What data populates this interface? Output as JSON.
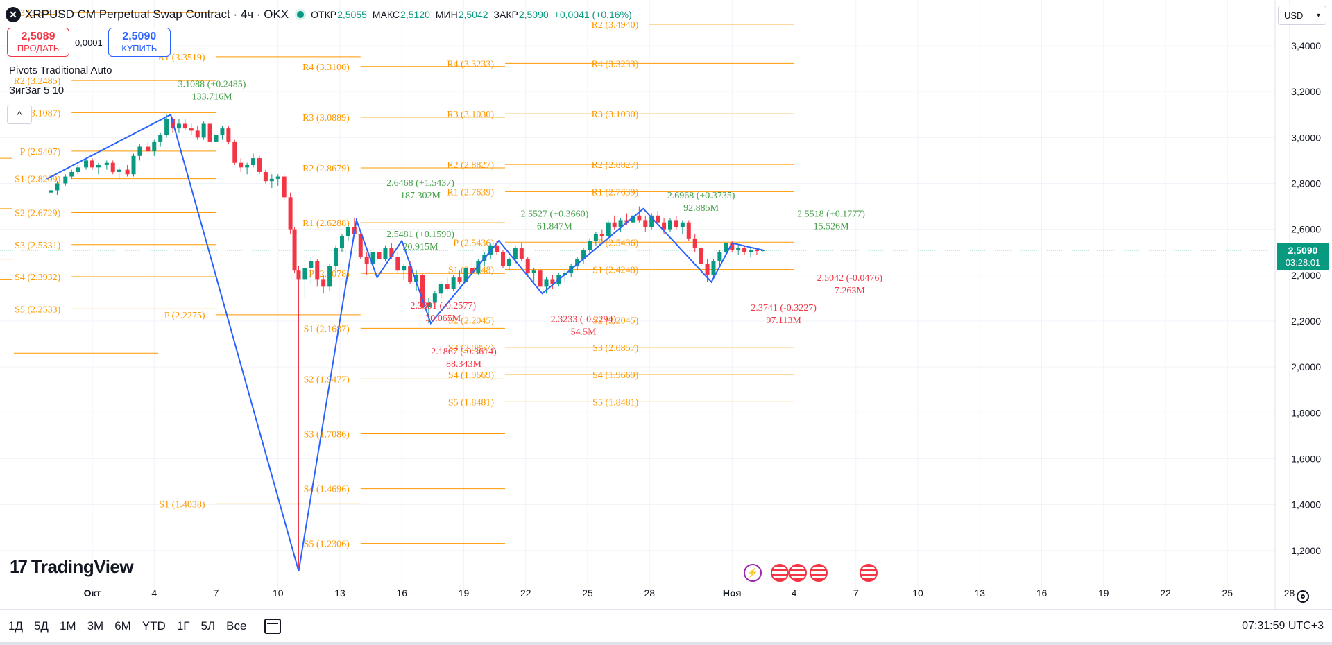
{
  "legend": {
    "symbol": "XRPUSD CM Perpetual Swap Contract · 4ч · OKX",
    "open_label": "ОТКР",
    "open_value": "2,5055",
    "high_label": "МАКС",
    "high_value": "2,5120",
    "low_label": "МИН",
    "low_value": "2,5042",
    "close_label": "ЗАКР",
    "close_value": "2,5090",
    "change": "+0,0041 (+0,16%)"
  },
  "trade": {
    "sell_price": "2,5089",
    "sell_label": "ПРОДАТЬ",
    "spread": "0,0001",
    "buy_price": "2,5090",
    "buy_label": "КУПИТЬ"
  },
  "indicators": {
    "pivots": "Pivots Traditional Auto",
    "zigzag": "ЗигЗаг 5 10"
  },
  "currency": {
    "label": "USD",
    "icon": "chevron-down-icon"
  },
  "last_price": {
    "price": "2,5090",
    "countdown": "03:28:01"
  },
  "brand": {
    "name": "TradingView"
  },
  "toolbar": {
    "timeframes": [
      "1Д",
      "5Д",
      "1М",
      "3М",
      "6М",
      "YTD",
      "1Г",
      "5Л",
      "Все"
    ],
    "clock": "07:31:59 UTC+3"
  },
  "colors": {
    "up": "#089981",
    "down": "#f23645",
    "pivot": "#ff9800",
    "zigzag": "#2962ff",
    "zz_up_label": "#43a047",
    "zz_down_label": "#f23645"
  },
  "chart_data": {
    "type": "candlestick",
    "price_axis": [
      "3,4000",
      "3,2000",
      "3,0000",
      "2,8000",
      "2,6000",
      "2,4000",
      "2,2000",
      "2,0000",
      "1,8000",
      "1,6000",
      "1,4000",
      "1,2000"
    ],
    "price_axis_values": [
      3.4,
      3.2,
      3.0,
      2.8,
      2.6,
      2.4,
      2.2,
      2.0,
      1.8,
      1.6,
      1.4,
      1.2
    ],
    "ylim": [
      1.12,
      3.5
    ],
    "time_axis": [
      "Окт",
      "4",
      "7",
      "10",
      "13",
      "16",
      "19",
      "22",
      "25",
      "28",
      "Ноя",
      "4",
      "7",
      "10",
      "13",
      "16",
      "19",
      "22",
      "25",
      "28"
    ],
    "time_axis_days": [
      1,
      4,
      7,
      10,
      13,
      16,
      19,
      22,
      25,
      28,
      32,
      35,
      38,
      41,
      44,
      47,
      50,
      53,
      56,
      59
    ],
    "xlim": [
      -1.2,
      63
    ],
    "last_price": 2.509,
    "candles": [
      [
        -1.0,
        2.76,
        2.78,
        2.74,
        2.77
      ],
      [
        -0.7,
        2.77,
        2.81,
        2.75,
        2.8
      ],
      [
        -0.3,
        2.8,
        2.84,
        2.79,
        2.83
      ],
      [
        0.0,
        2.83,
        2.86,
        2.82,
        2.85
      ],
      [
        0.3,
        2.85,
        2.88,
        2.84,
        2.87
      ],
      [
        0.7,
        2.87,
        2.91,
        2.86,
        2.9
      ],
      [
        1.0,
        2.9,
        2.91,
        2.86,
        2.87
      ],
      [
        1.3,
        2.87,
        2.89,
        2.84,
        2.88
      ],
      [
        1.7,
        2.88,
        2.9,
        2.86,
        2.89
      ],
      [
        2.0,
        2.89,
        2.9,
        2.84,
        2.85
      ],
      [
        2.3,
        2.85,
        2.87,
        2.82,
        2.86
      ],
      [
        2.7,
        2.86,
        2.88,
        2.83,
        2.84
      ],
      [
        3.0,
        2.84,
        2.93,
        2.83,
        2.92
      ],
      [
        3.3,
        2.92,
        2.97,
        2.9,
        2.96
      ],
      [
        3.7,
        2.96,
        2.98,
        2.93,
        2.94
      ],
      [
        4.0,
        2.94,
        2.99,
        2.92,
        2.98
      ],
      [
        4.3,
        2.98,
        3.02,
        2.96,
        3.01
      ],
      [
        4.6,
        3.01,
        3.1,
        3.0,
        3.08
      ],
      [
        4.9,
        3.08,
        3.09,
        3.02,
        3.04
      ],
      [
        5.2,
        3.04,
        3.08,
        3.02,
        3.06
      ],
      [
        5.5,
        3.06,
        3.08,
        3.03,
        3.04
      ],
      [
        5.8,
        3.04,
        3.06,
        3.01,
        3.03
      ],
      [
        6.1,
        3.03,
        3.05,
        2.99,
        3.0
      ],
      [
        6.4,
        3.0,
        3.07,
        2.99,
        3.06
      ],
      [
        6.7,
        3.06,
        3.07,
        2.97,
        2.98
      ],
      [
        7.0,
        2.98,
        3.02,
        2.96,
        3.01
      ],
      [
        7.3,
        3.01,
        3.05,
        2.99,
        3.04
      ],
      [
        7.6,
        3.04,
        3.05,
        2.97,
        2.98
      ],
      [
        7.9,
        2.98,
        2.99,
        2.88,
        2.89
      ],
      [
        8.2,
        2.89,
        2.91,
        2.85,
        2.87
      ],
      [
        8.5,
        2.87,
        2.89,
        2.84,
        2.88
      ],
      [
        8.8,
        2.88,
        2.93,
        2.87,
        2.91
      ],
      [
        9.1,
        2.91,
        2.92,
        2.84,
        2.85
      ],
      [
        9.4,
        2.85,
        2.86,
        2.8,
        2.81
      ],
      [
        9.7,
        2.81,
        2.84,
        2.78,
        2.82
      ],
      [
        10.0,
        2.82,
        2.84,
        2.79,
        2.83
      ],
      [
        10.3,
        2.83,
        2.84,
        2.73,
        2.74
      ],
      [
        10.6,
        2.74,
        2.76,
        2.58,
        2.6
      ],
      [
        10.8,
        2.6,
        2.61,
        2.41,
        2.42
      ],
      [
        11.0,
        2.42,
        2.44,
        1.11,
        2.38
      ],
      [
        11.3,
        2.38,
        2.45,
        2.3,
        2.43
      ],
      [
        11.6,
        2.43,
        2.48,
        2.36,
        2.46
      ],
      [
        11.9,
        2.46,
        2.47,
        2.35,
        2.38
      ],
      [
        12.2,
        2.38,
        2.4,
        2.32,
        2.35
      ],
      [
        12.5,
        2.35,
        2.45,
        2.33,
        2.44
      ],
      [
        12.8,
        2.44,
        2.53,
        2.42,
        2.52
      ],
      [
        13.1,
        2.52,
        2.58,
        2.5,
        2.57
      ],
      [
        13.4,
        2.57,
        2.62,
        2.55,
        2.61
      ],
      [
        13.7,
        2.61,
        2.65,
        2.57,
        2.58
      ],
      [
        14.0,
        2.58,
        2.59,
        2.47,
        2.48
      ],
      [
        14.3,
        2.48,
        2.5,
        2.4,
        2.45
      ],
      [
        14.6,
        2.45,
        2.52,
        2.43,
        2.5
      ],
      [
        14.9,
        2.5,
        2.53,
        2.46,
        2.47
      ],
      [
        15.2,
        2.47,
        2.53,
        2.46,
        2.52
      ],
      [
        15.5,
        2.52,
        2.54,
        2.47,
        2.48
      ],
      [
        15.8,
        2.48,
        2.5,
        2.41,
        2.42
      ],
      [
        16.1,
        2.42,
        2.45,
        2.38,
        2.44
      ],
      [
        16.4,
        2.44,
        2.46,
        2.36,
        2.37
      ],
      [
        16.7,
        2.37,
        2.42,
        2.33,
        2.4
      ],
      [
        17.0,
        2.4,
        2.41,
        2.25,
        2.26
      ],
      [
        17.3,
        2.26,
        2.3,
        2.19,
        2.28
      ],
      [
        17.6,
        2.28,
        2.33,
        2.26,
        2.32
      ],
      [
        17.9,
        2.32,
        2.37,
        2.3,
        2.36
      ],
      [
        18.2,
        2.36,
        2.39,
        2.33,
        2.34
      ],
      [
        18.5,
        2.34,
        2.4,
        2.33,
        2.39
      ],
      [
        18.8,
        2.39,
        2.42,
        2.36,
        2.37
      ],
      [
        19.1,
        2.37,
        2.44,
        2.36,
        2.43
      ],
      [
        19.4,
        2.43,
        2.46,
        2.4,
        2.41
      ],
      [
        19.7,
        2.41,
        2.47,
        2.4,
        2.46
      ],
      [
        20.0,
        2.46,
        2.5,
        2.44,
        2.49
      ],
      [
        20.3,
        2.49,
        2.54,
        2.47,
        2.53
      ],
      [
        20.6,
        2.53,
        2.55,
        2.49,
        2.5
      ],
      [
        20.9,
        2.5,
        2.51,
        2.43,
        2.44
      ],
      [
        21.2,
        2.44,
        2.48,
        2.42,
        2.47
      ],
      [
        21.5,
        2.47,
        2.53,
        2.45,
        2.52
      ],
      [
        21.8,
        2.52,
        2.54,
        2.46,
        2.47
      ],
      [
        22.1,
        2.47,
        2.48,
        2.4,
        2.41
      ],
      [
        22.4,
        2.41,
        2.43,
        2.37,
        2.42
      ],
      [
        22.7,
        2.42,
        2.43,
        2.34,
        2.35
      ],
      [
        23.0,
        2.35,
        2.39,
        2.32,
        2.38
      ],
      [
        23.3,
        2.38,
        2.4,
        2.34,
        2.36
      ],
      [
        23.6,
        2.36,
        2.41,
        2.35,
        2.4
      ],
      [
        23.9,
        2.4,
        2.42,
        2.37,
        2.41
      ],
      [
        24.2,
        2.41,
        2.45,
        2.39,
        2.44
      ],
      [
        24.5,
        2.44,
        2.48,
        2.42,
        2.47
      ],
      [
        24.8,
        2.47,
        2.52,
        2.45,
        2.51
      ],
      [
        25.1,
        2.51,
        2.56,
        2.49,
        2.55
      ],
      [
        25.4,
        2.55,
        2.59,
        2.53,
        2.58
      ],
      [
        25.7,
        2.58,
        2.6,
        2.55,
        2.57
      ],
      [
        26.0,
        2.57,
        2.64,
        2.56,
        2.63
      ],
      [
        26.3,
        2.63,
        2.66,
        2.6,
        2.61
      ],
      [
        26.6,
        2.61,
        2.65,
        2.59,
        2.64
      ],
      [
        26.9,
        2.64,
        2.67,
        2.62,
        2.63
      ],
      [
        27.2,
        2.63,
        2.69,
        2.61,
        2.66
      ],
      [
        27.5,
        2.66,
        2.7,
        2.63,
        2.64
      ],
      [
        27.8,
        2.64,
        2.66,
        2.59,
        2.61
      ],
      [
        28.1,
        2.61,
        2.67,
        2.6,
        2.66
      ],
      [
        28.4,
        2.66,
        2.68,
        2.62,
        2.63
      ],
      [
        28.7,
        2.63,
        2.65,
        2.58,
        2.6
      ],
      [
        29.0,
        2.6,
        2.65,
        2.59,
        2.64
      ],
      [
        29.3,
        2.64,
        2.66,
        2.6,
        2.61
      ],
      [
        29.6,
        2.61,
        2.64,
        2.58,
        2.63
      ],
      [
        29.9,
        2.63,
        2.64,
        2.55,
        2.56
      ],
      [
        30.2,
        2.56,
        2.58,
        2.5,
        2.52
      ],
      [
        30.5,
        2.52,
        2.53,
        2.44,
        2.45
      ],
      [
        30.8,
        2.45,
        2.47,
        2.37,
        2.4
      ],
      [
        31.1,
        2.4,
        2.47,
        2.38,
        2.46
      ],
      [
        31.4,
        2.46,
        2.51,
        2.44,
        2.5
      ],
      [
        31.7,
        2.5,
        2.55,
        2.48,
        2.54
      ],
      [
        32.0,
        2.54,
        2.55,
        2.5,
        2.51
      ],
      [
        32.3,
        2.51,
        2.53,
        2.49,
        2.52
      ],
      [
        32.6,
        2.52,
        2.53,
        2.49,
        2.5
      ],
      [
        32.9,
        2.5,
        2.52,
        2.48,
        2.51
      ],
      [
        33.2,
        2.51,
        2.52,
        2.49,
        2.505
      ],
      [
        33.5,
        2.505,
        2.512,
        2.504,
        2.509
      ]
    ],
    "zigzag": [
      [
        -1.2,
        2.82
      ],
      [
        4.8,
        3.1
      ],
      [
        11.0,
        1.11
      ],
      [
        13.8,
        2.64
      ],
      [
        14.8,
        2.39
      ],
      [
        16.0,
        2.55
      ],
      [
        17.4,
        2.19
      ],
      [
        20.7,
        2.55
      ],
      [
        22.8,
        2.32
      ],
      [
        27.7,
        2.69
      ],
      [
        31.0,
        2.37
      ],
      [
        32.0,
        2.54
      ],
      [
        33.5,
        2.509
      ]
    ],
    "zigzag_labels": [
      {
        "x": 6.8,
        "y": 3.22,
        "color": "up",
        "lines": [
          "3.1088 (+0.2485)",
          "133.716M"
        ]
      },
      {
        "x": 16.9,
        "y": 2.79,
        "color": "up",
        "lines": [
          "2.6468 (+1.5437)",
          "187.302M"
        ]
      },
      {
        "x": 16.9,
        "y": 2.565,
        "color": "up",
        "lines": [
          "2.5481 (+0.1590)",
          "20.915M"
        ]
      },
      {
        "x": 23.4,
        "y": 2.655,
        "color": "up",
        "lines": [
          "2.5527 (+0.3660)",
          "61.847M"
        ]
      },
      {
        "x": 30.5,
        "y": 2.735,
        "color": "up",
        "lines": [
          "2.6968 (+0.3735)",
          "92.885M"
        ]
      },
      {
        "x": 36.8,
        "y": 2.655,
        "color": "up",
        "lines": [
          "2.5518 (+0.1777)",
          "15.526M"
        ]
      },
      {
        "x": 18.0,
        "y": 2.255,
        "color": "down",
        "lines": [
          "2.3891 (-0.2577)",
          "30.065M"
        ]
      },
      {
        "x": 19.0,
        "y": 2.055,
        "color": "down",
        "lines": [
          "2.1867 (-0.3614)",
          "88.343M"
        ]
      },
      {
        "x": 24.8,
        "y": 2.195,
        "color": "down",
        "lines": [
          "2.3233 (-0.2294)",
          "54.5M"
        ]
      },
      {
        "x": 34.5,
        "y": 2.245,
        "color": "down",
        "lines": [
          "2.3741 (-0.3227)",
          "97.113M"
        ]
      },
      {
        "x": 37.7,
        "y": 2.375,
        "color": "down",
        "lines": [
          "2.5042 (-0.0476)",
          "7.263M"
        ]
      }
    ],
    "pivot_blocks": [
      {
        "x0": -1.2,
        "x1": 0.0,
        "levels": []
      },
      {
        "x0": 0.0,
        "x1": 7.0,
        "levels": [
          [
            "R3",
            "3.5444"
          ],
          [
            "R2",
            "3.2485"
          ],
          [
            "R1",
            "3.1087"
          ],
          [
            "P",
            "2.9407"
          ],
          [
            "S1",
            "2.8209"
          ],
          [
            "S2",
            "2.6729"
          ],
          [
            "S3",
            "2.5331"
          ],
          [
            "S4",
            "2.3932"
          ],
          [
            "S5",
            "2.2533"
          ]
        ]
      },
      {
        "x0": 7.0,
        "x1": 14.0,
        "levels": [
          [
            "R1",
            "3.3519"
          ],
          [
            "P",
            "2.2275"
          ],
          [
            "S1",
            "1.4038"
          ]
        ]
      },
      {
        "x0": 14.0,
        "x1": 21.0,
        "levels": [
          [
            "R4",
            "3.3100"
          ],
          [
            "R3",
            "3.0889"
          ],
          [
            "R2",
            "2.8679"
          ],
          [
            "R1",
            "2.6288"
          ],
          [
            "P",
            "2.4078"
          ],
          [
            "S1",
            "2.1687"
          ],
          [
            "S2",
            "1.9477"
          ],
          [
            "S3",
            "1.7086"
          ],
          [
            "S4",
            "1.4696"
          ],
          [
            "S5",
            "1.2306"
          ]
        ]
      },
      {
        "x0": 21.0,
        "x1": 28.0,
        "levels": [
          [
            "R4",
            "3.3233"
          ],
          [
            "R3",
            "3.1030"
          ],
          [
            "R2",
            "2.8827"
          ],
          [
            "R1",
            "2.7639"
          ],
          [
            "P",
            "2.5436"
          ],
          [
            "S1",
            "2.4248"
          ],
          [
            "S2",
            "2.2045"
          ],
          [
            "S3",
            "2.0857"
          ],
          [
            "S4",
            "1.9669"
          ],
          [
            "S5",
            "1.8481"
          ]
        ]
      },
      {
        "x0": 28.0,
        "x1": 35.0,
        "levels": [
          [
            "R2",
            "3.4940"
          ],
          [
            "R4",
            "3.3233"
          ],
          [
            "R3",
            "3.1030"
          ],
          [
            "R2",
            "2.8827"
          ],
          [
            "R1",
            "2.7639"
          ],
          [
            "P",
            "2.5436"
          ],
          [
            "S1",
            "2.4248"
          ],
          [
            "S2",
            "2.2045"
          ],
          [
            "S3",
            "2.0857"
          ],
          [
            "S4",
            "1.9669"
          ],
          [
            "S5",
            "1.8481"
          ]
        ]
      }
    ],
    "events": [
      {
        "type": "flash",
        "x": 33.0
      },
      {
        "type": "flag",
        "x": 34.3
      },
      {
        "type": "flag",
        "x": 35.2
      },
      {
        "type": "flag",
        "x": 36.2
      },
      {
        "type": "flag",
        "x": 38.6
      }
    ]
  }
}
